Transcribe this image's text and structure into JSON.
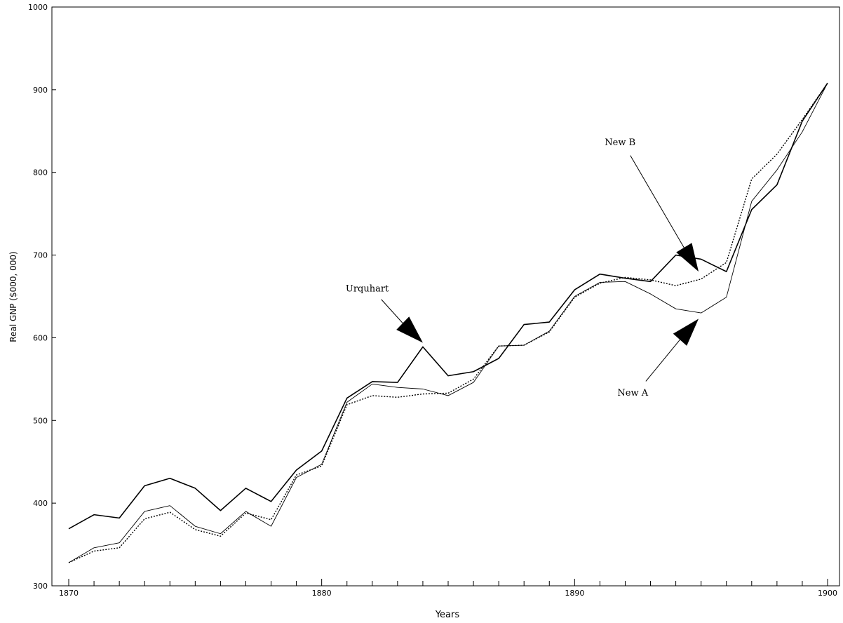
{
  "chart_data": {
    "type": "line",
    "title": "",
    "xlabel": "Years",
    "ylabel": "Real GNP ($000, 000)",
    "xlim": [
      1870,
      1900
    ],
    "ylim": [
      300,
      1000
    ],
    "x_ticks": [
      1870,
      1880,
      1890,
      1900
    ],
    "y_ticks": [
      300,
      400,
      500,
      600,
      700,
      800,
      900,
      1000
    ],
    "x": [
      1870,
      1871,
      1872,
      1873,
      1874,
      1875,
      1876,
      1877,
      1878,
      1879,
      1880,
      1881,
      1882,
      1883,
      1884,
      1885,
      1886,
      1887,
      1888,
      1889,
      1890,
      1891,
      1892,
      1893,
      1894,
      1895,
      1896,
      1897,
      1898,
      1899,
      1900
    ],
    "grid": false,
    "legend": "none",
    "series": [
      {
        "name": "Urquhart",
        "style": "solid-thick",
        "values": [
          369,
          386,
          382,
          421,
          430,
          418,
          391,
          418,
          402,
          440,
          463,
          527,
          547,
          546,
          589,
          554,
          559,
          575,
          616,
          619,
          658,
          677,
          672,
          668,
          700,
          695,
          680,
          755,
          785,
          862,
          908
        ]
      },
      {
        "name": "New A",
        "style": "solid-thin",
        "values": [
          328,
          346,
          352,
          390,
          397,
          372,
          363,
          390,
          372,
          431,
          447,
          522,
          544,
          540,
          538,
          530,
          546,
          590,
          591,
          608,
          650,
          667,
          668,
          653,
          635,
          630,
          649,
          765,
          803,
          849,
          908
        ]
      },
      {
        "name": "New B",
        "style": "dotted",
        "values": [
          328,
          342,
          346,
          381,
          389,
          368,
          360,
          388,
          380,
          434,
          445,
          519,
          530,
          528,
          532,
          533,
          550,
          590,
          591,
          607,
          649,
          666,
          673,
          670,
          663,
          671,
          691,
          792,
          822,
          864,
          908
        ]
      }
    ],
    "annotations": [
      {
        "text": "Urquhart",
        "x": 1881.8,
        "y": 656,
        "arrow_to": [
          1884.0,
          594
        ]
      },
      {
        "text": "New B",
        "x": 1891.8,
        "y": 833,
        "arrow_to": [
          1894.9,
          680
        ]
      },
      {
        "text": "New A",
        "x": 1892.3,
        "y": 530,
        "arrow_to": [
          1894.9,
          623
        ]
      }
    ]
  }
}
